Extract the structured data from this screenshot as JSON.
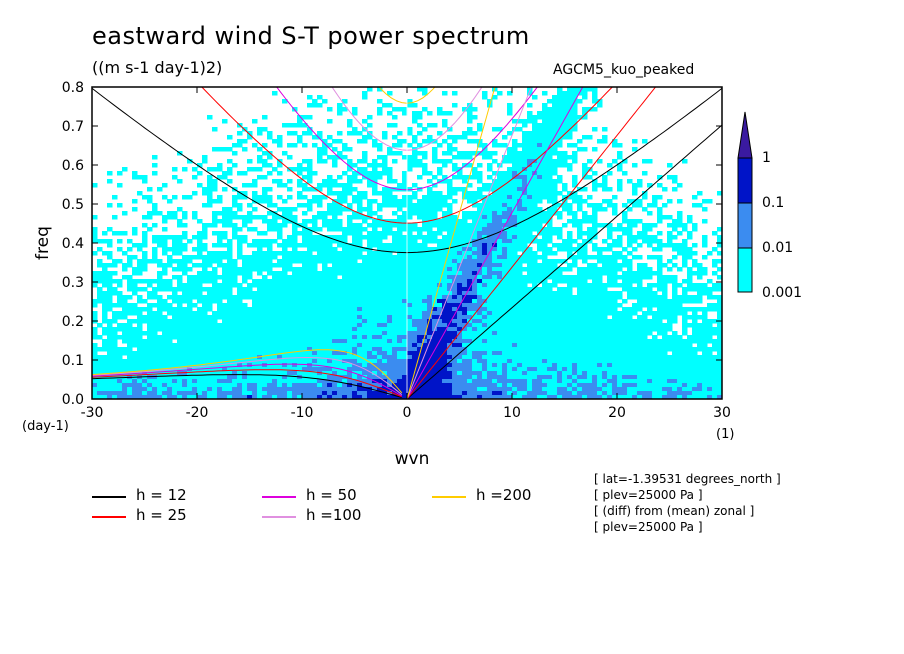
{
  "chart_data": {
    "type": "heatmap",
    "title": "eastward wind S-T power spectrum",
    "units_label": "((m s-1 day-1)2)",
    "model_label": "AGCM5_kuo_peaked",
    "xlabel": "wvn",
    "ylabel": "freq",
    "x_unit_label": "(1)",
    "y_unit_label": "(day-1)",
    "xlim": [
      -30,
      30
    ],
    "ylim": [
      0,
      0.8
    ],
    "x_ticks": [
      "-30",
      "-20",
      "-10",
      "0",
      "10",
      "20",
      "30"
    ],
    "y_ticks": [
      "0.0",
      "0.1",
      "0.2",
      "0.3",
      "0.4",
      "0.5",
      "0.6",
      "0.7",
      "0.8"
    ],
    "colorbar": {
      "levels": [
        "0.001",
        "0.01",
        "0.1",
        "1"
      ],
      "colors": [
        "#00ffff",
        "#3b8cf0",
        "#0014c8",
        "#3a1aa0"
      ]
    },
    "dispersion_curves": [
      {
        "name": "h = 12",
        "color": "#000000",
        "h": 12
      },
      {
        "name": "h = 25",
        "color": "#ff0000",
        "h": 25
      },
      {
        "name": "h = 50",
        "color": "#dd00dd",
        "h": 50
      },
      {
        "name": "h =100",
        "color": "#e090e0",
        "h": 100
      },
      {
        "name": "h =200",
        "color": "#ffcc00",
        "h": 200
      }
    ],
    "annotations": [
      "[ lat=-1.39531 degrees_north ]",
      "[ plev=25000 Pa ]",
      "[ (diff) from (mean) zonal ]",
      "[ plev=25000 Pa ]"
    ]
  }
}
